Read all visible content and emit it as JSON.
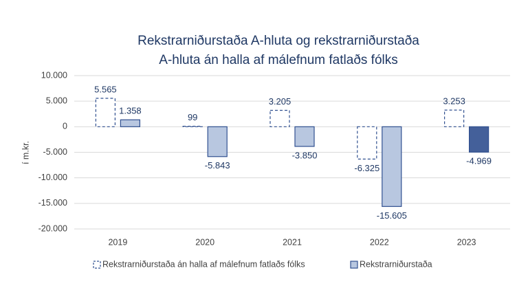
{
  "chart_data": {
    "type": "bar",
    "title": [
      "Rekstrarniðurstaða A-hluta og rekstrarniðurstaða",
      "A-hluta án halla af málefnum fatlaðs fólks"
    ],
    "y_label": "í m.kr.",
    "categories": [
      "2019",
      "2020",
      "2021",
      "2022",
      "2023"
    ],
    "series": [
      {
        "name": "Rekstrarniðurstaða án halla af málefnum fatlaðs fólks",
        "color": "#2f4f8f",
        "style": "dashed",
        "values": [
          5565,
          99,
          3205,
          -6325,
          3253
        ],
        "value_labels": [
          "5.565",
          "99",
          "3.205",
          "-6.325",
          "3.253"
        ]
      },
      {
        "name": "Rekstrarniðurstaða",
        "color": "#b8c7e0",
        "style": "solid",
        "colors": [
          "#b8c7e0",
          "#b8c7e0",
          "#b8c7e0",
          "#b8c7e0",
          "#44609a"
        ],
        "values": [
          1358,
          -5843,
          -3850,
          -15605,
          -4969
        ],
        "value_labels": [
          "1.358",
          "-5.843",
          "-3.850",
          "-15.605",
          "-4.969"
        ]
      }
    ],
    "ylim": [
      -20000,
      10000
    ],
    "yticks": [
      {
        "value": -20000,
        "label": "-20.000"
      },
      {
        "value": -15000,
        "label": "-15.000"
      },
      {
        "value": -10000,
        "label": "-10.000"
      },
      {
        "value": -5000,
        "label": "-5.000"
      },
      0,
      {
        "value": 5000,
        "label": "5.000"
      },
      {
        "value": 10000,
        "label": "10.000"
      }
    ],
    "grid": true,
    "legend": "bottom"
  }
}
